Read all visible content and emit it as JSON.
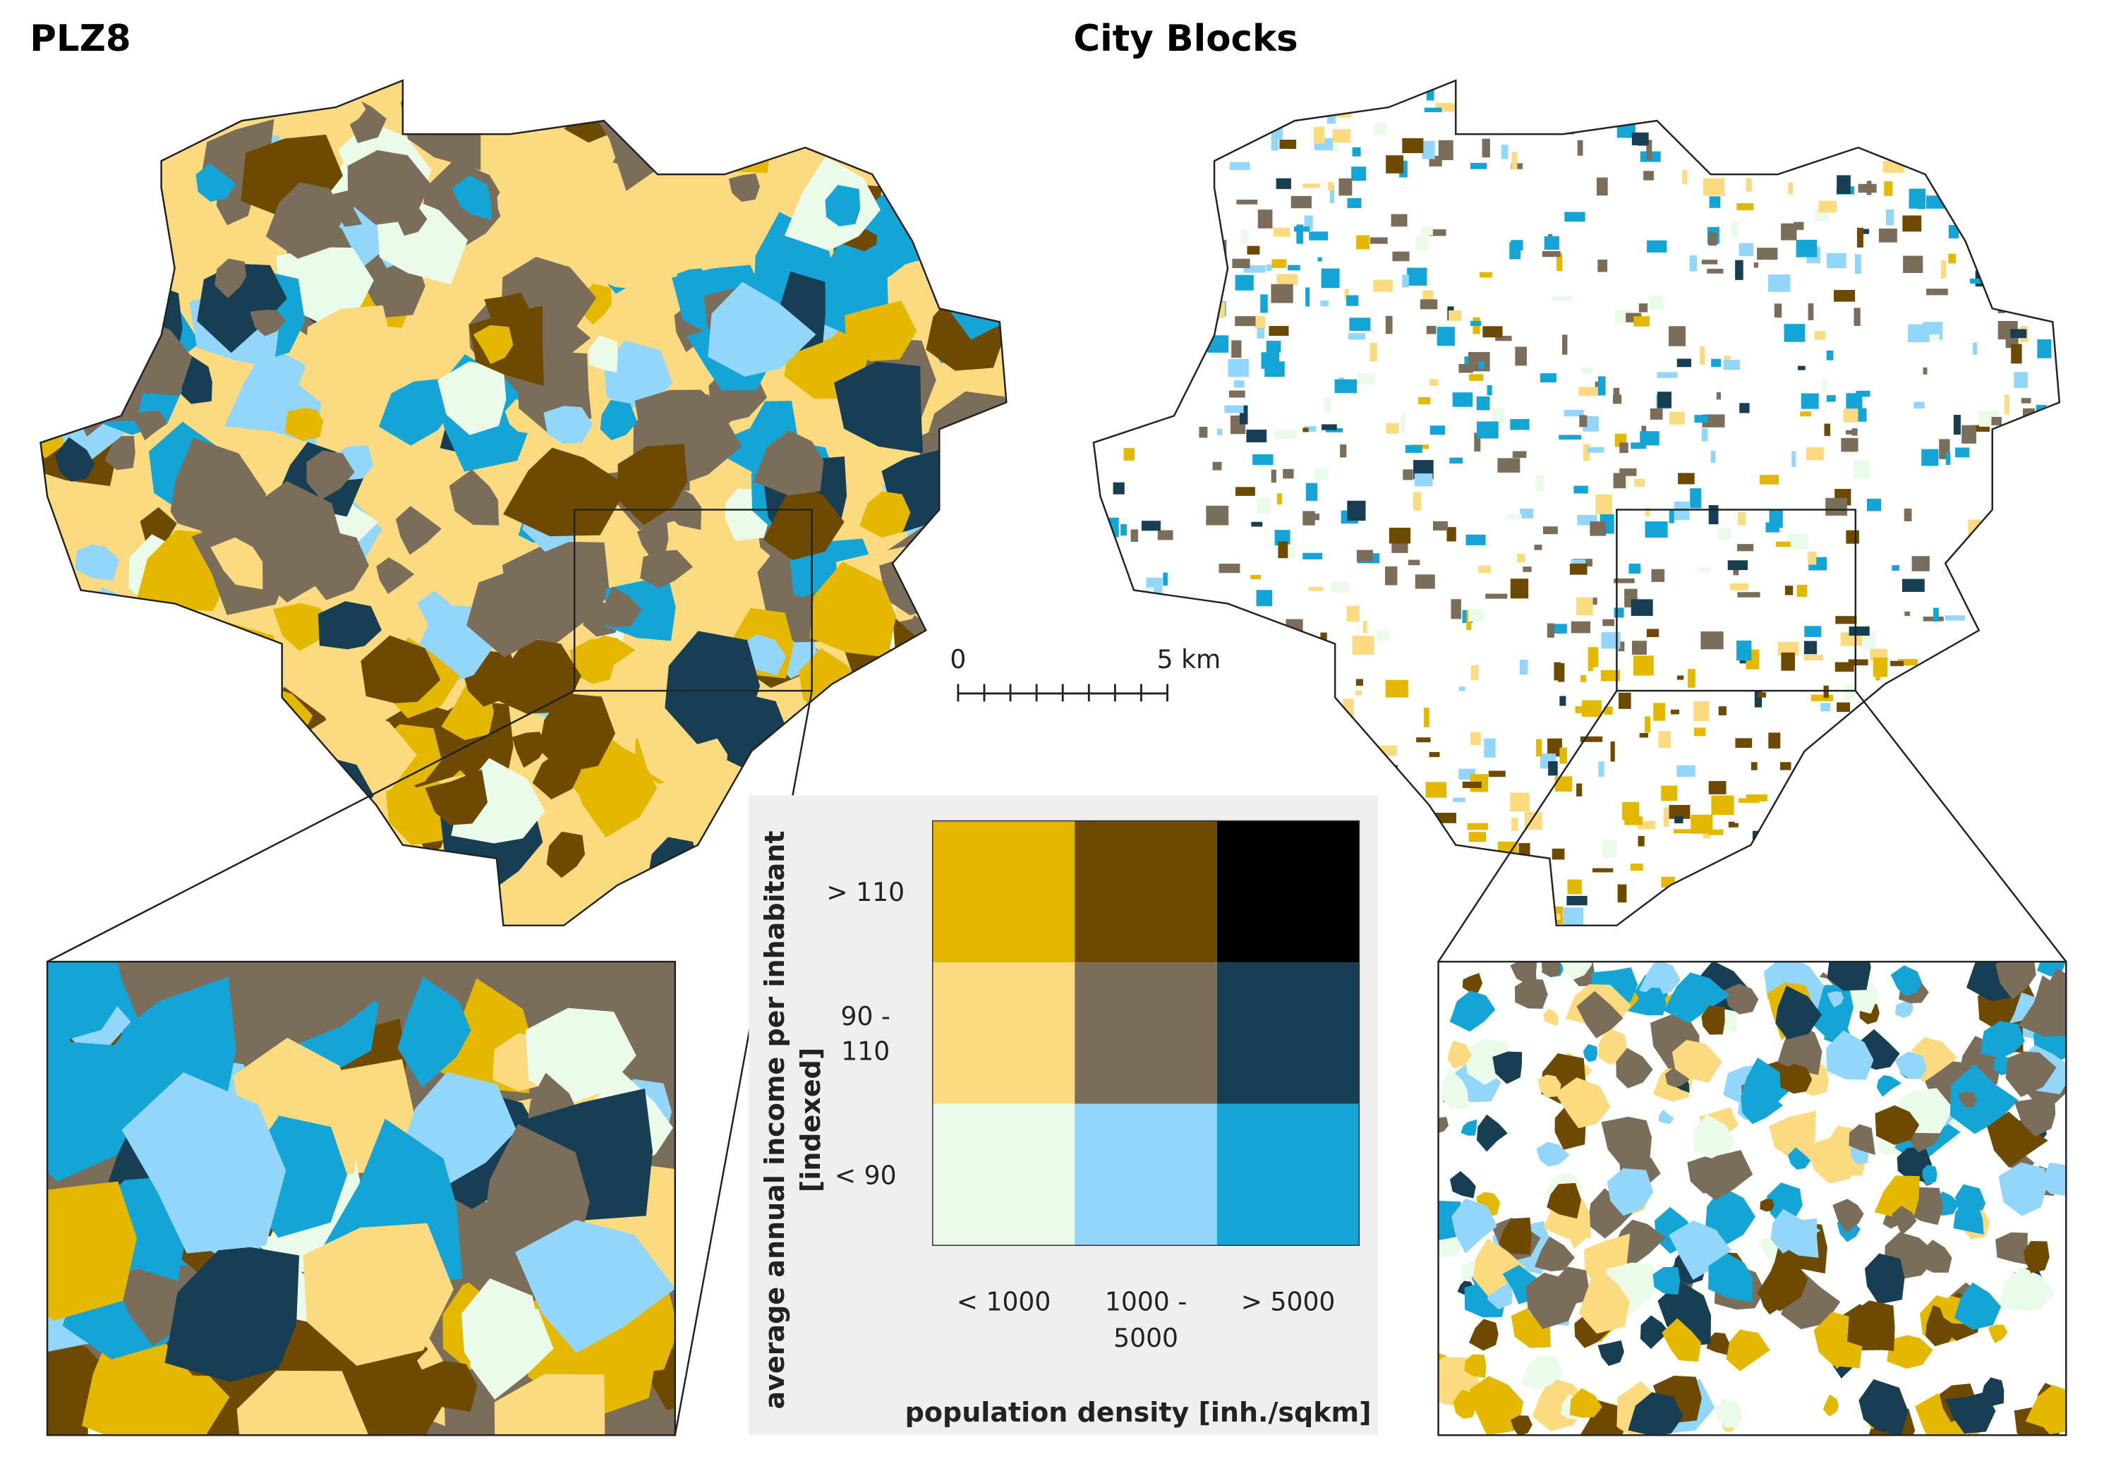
{
  "titles": {
    "left": "PLZ8",
    "right": "City Blocks"
  },
  "scale_bar": {
    "start": "0",
    "end": "5 km"
  },
  "legend": {
    "y_title": [
      "average annual income per inhabitant",
      "[indexed]"
    ],
    "x_title": "population density [inh./sqkm]",
    "rows": [
      {
        "label": [
          "> 110"
        ],
        "colors": [
          "#e5b800",
          "#6e4a00",
          "#000000"
        ]
      },
      {
        "label": [
          "90 -",
          "110"
        ],
        "colors": [
          "#fcdb80",
          "#7a6e5a",
          "#173e52"
        ]
      },
      {
        "label": [
          "< 90"
        ],
        "colors": [
          "#eafbe9",
          "#93d6fb",
          "#14a4d6"
        ]
      }
    ],
    "columns": [
      [
        "< 1000"
      ],
      [
        "1000 -",
        "5000"
      ],
      [
        "> 5000"
      ]
    ]
  }
}
